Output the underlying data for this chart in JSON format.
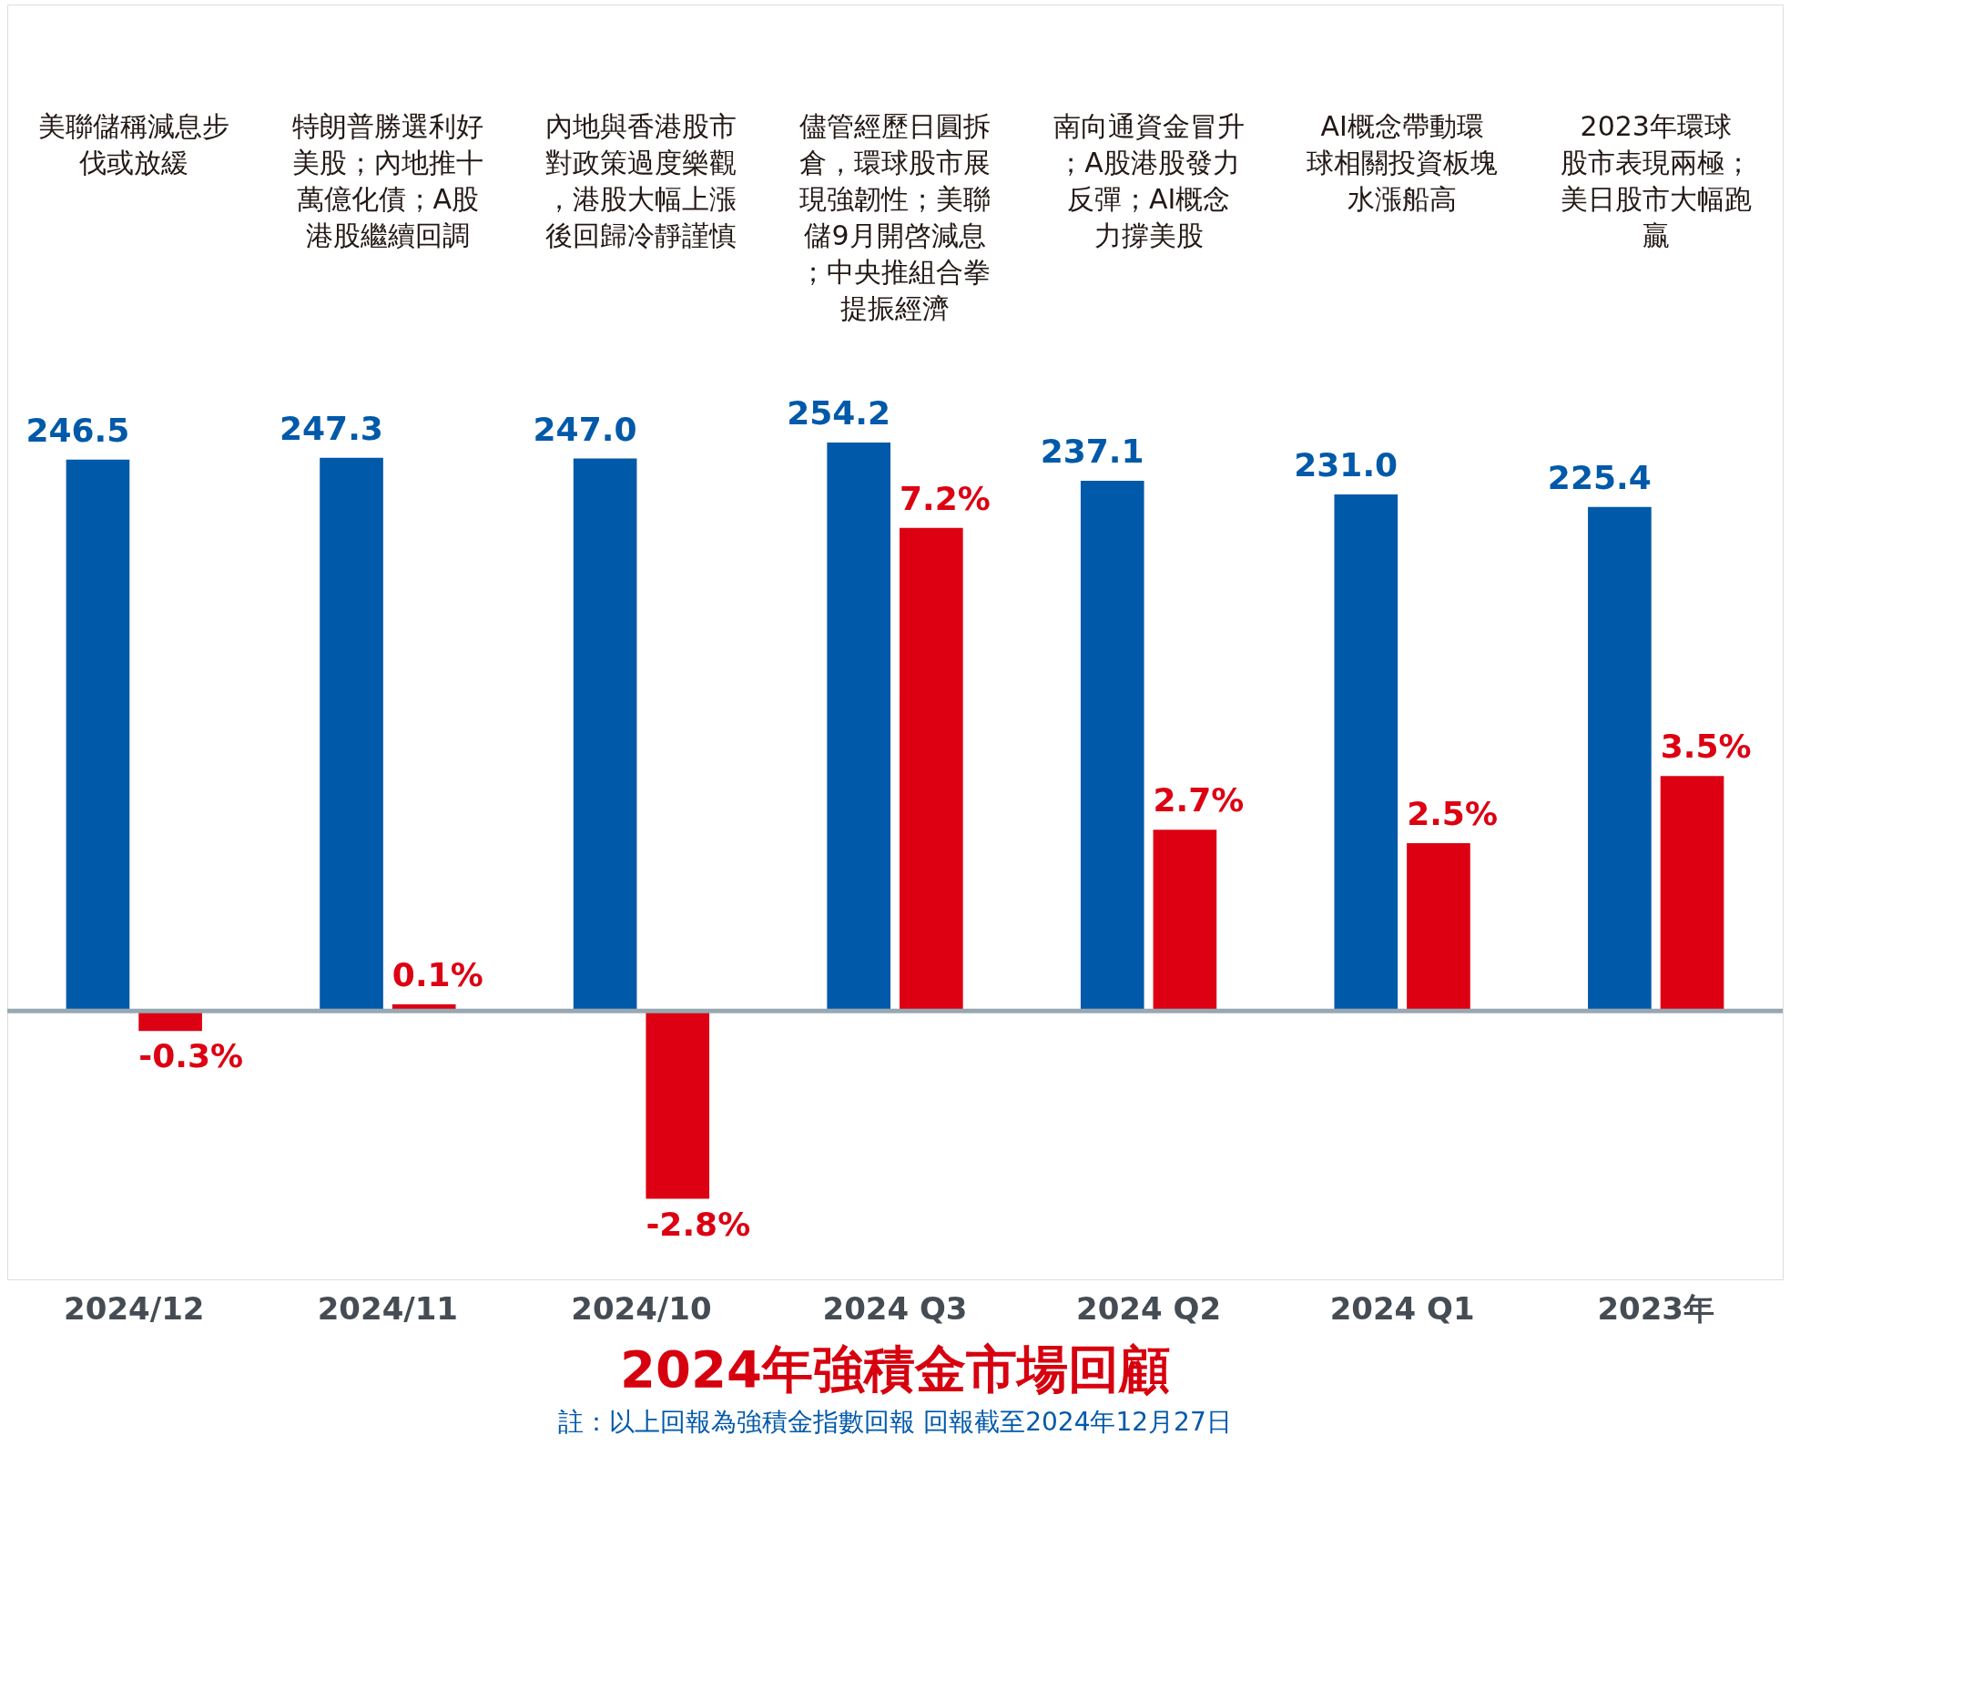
{
  "chart_data": {
    "type": "bar",
    "title": "2024年強積金市場回顧",
    "categories": [
      "2024/12",
      "2024/11",
      "2024/10",
      "2024 Q3",
      "2024 Q2",
      "2024 Q1",
      "2023年"
    ],
    "series": [
      {
        "color": "#0059a9",
        "values": [
          246.5,
          247.3,
          247.0,
          254.2,
          237.1,
          231.0,
          225.4
        ],
        "value_labels": [
          "246.5",
          "247.3",
          "247.0",
          "254.2",
          "237.1",
          "231.0",
          "225.4"
        ]
      },
      {
        "color": "#dc0012",
        "axis": "y2",
        "values": [
          -0.3,
          0.1,
          -2.8,
          7.2,
          2.7,
          2.5,
          3.5
        ],
        "value_labels": [
          "-0.3%",
          "0.1%",
          "-2.8%",
          "7.2%",
          "2.7%",
          "2.5%",
          "3.5%"
        ]
      }
    ],
    "ylim": [
      -120,
      450
    ],
    "y2lim": [
      -4,
      15
    ],
    "tick_labels": "x",
    "grid": false,
    "ref_lines": [
      {
        "axis": "y",
        "value": 0,
        "color": "#98a8b3"
      }
    ],
    "annotations": [
      "美聯儲稱減息步伐或放緩",
      "特朗普勝選利好美股；內地推十萬億化債；A股港股繼續回調",
      "內地與香港股市對政策過度樂觀，港股大幅上漲後回歸冷靜謹慎",
      "儘管經歷日圓拆倉，環球股市展現強韌性；美聯儲9月開啓減息；中央推組合拳提振經濟",
      "南向通資金冒升；A股港股發力反彈；AI概念力撐美股",
      "AI概念帶動環球相關投資板塊水漲船高",
      "2023年環球股市表現兩極；美日股市大幅跑贏",
      "註：以上回報為強積金指數回報 回報截至2024年12月27日"
    ]
  }
}
